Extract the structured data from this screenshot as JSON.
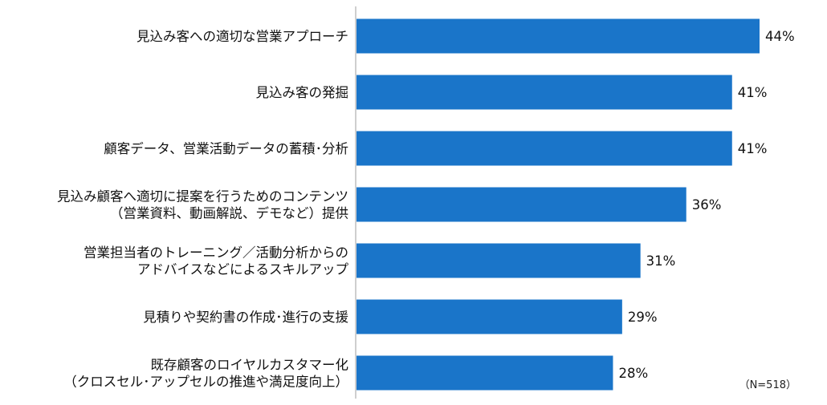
{
  "chart_data": {
    "type": "bar",
    "orientation": "horizontal",
    "categories": [
      [
        "見込み客への適切な営業アプローチ"
      ],
      [
        "見込み客の発掘"
      ],
      [
        "顧客データ、営業活動データの蓄積･分析"
      ],
      [
        "見込み顧客へ適切に提案を行うためのコンテンツ",
        "（営業資料、動画解説、デモなど）提供"
      ],
      [
        "営業担当者のトレーニング／活動分析からの",
        "アドバイスなどによるスキルアップ"
      ],
      [
        "見積りや契約書の作成･進行の支援"
      ],
      [
        "既存顧客のロイヤルカスタマー化",
        "（クロスセル･アップセルの推進や満足度向上）"
      ]
    ],
    "values": [
      44,
      41,
      41,
      36,
      31,
      29,
      28
    ],
    "value_labels": [
      "44%",
      "41%",
      "41%",
      "36%",
      "31%",
      "29%",
      "28%"
    ],
    "note": "（N=518）",
    "bar_color": "#1a75c9",
    "axis_color": "#bfbfbf",
    "xlim": [
      0,
      44
    ],
    "grid": false,
    "legend": "none"
  }
}
